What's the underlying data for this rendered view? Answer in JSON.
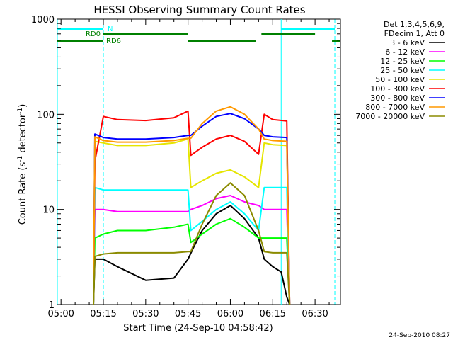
{
  "chart_data": {
    "type": "line",
    "title": "HESSI Observing Summary Count Rates",
    "xlabel": "Start Time (24-Sep-10 04:58:42)",
    "ylabel_main": "Count Rate (s",
    "ylabel_sup1": "-1",
    "ylabel_mid": " detector",
    "ylabel_sup2": "-1",
    "ylabel_end": ")",
    "xlim": [
      "04:58:42",
      "06:39:00"
    ],
    "ylim": [
      1,
      1000
    ],
    "yscale": "log",
    "x_ticks": [
      "05:00",
      "05:15",
      "05:30",
      "05:45",
      "06:00",
      "06:15",
      "06:30"
    ],
    "y_ticks": [
      "1",
      "10",
      "100",
      "1000"
    ],
    "legend_header": [
      "Det 1,3,4,5,6,9,",
      "FDecim 1, Att 0"
    ],
    "legend_placement": "right",
    "timestamp": "24-Sep-2010 08:27",
    "series": [
      {
        "name": "3 - 6 keV",
        "color": "#000000",
        "x": [
          "05:11:30",
          "05:12",
          "05:15",
          "05:20",
          "05:30",
          "05:40",
          "05:45",
          "05:47",
          "05:50",
          "05:55",
          "06:00",
          "06:05",
          "06:10",
          "06:12",
          "06:15",
          "06:18",
          "06:20",
          "06:21"
        ],
        "y": [
          1,
          3,
          3,
          2.5,
          1.8,
          1.9,
          3,
          4,
          6,
          9,
          11,
          8,
          5,
          3,
          2.5,
          2.2,
          1.2,
          1
        ]
      },
      {
        "name": "6 - 12 keV",
        "color": "#ff00ff",
        "x": [
          "05:11:30",
          "05:12",
          "05:15",
          "05:20",
          "05:30",
          "05:40",
          "05:45",
          "05:46",
          "05:50",
          "05:55",
          "06:00",
          "06:05",
          "06:10",
          "06:12",
          "06:15",
          "06:20",
          "06:21"
        ],
        "y": [
          1,
          10,
          10,
          9.5,
          9.5,
          9.5,
          9.5,
          10,
          11,
          13,
          14,
          12,
          11,
          10,
          10,
          10,
          1
        ]
      },
      {
        "name": "12 - 25 keV",
        "color": "#00ff00",
        "x": [
          "05:11:30",
          "05:12",
          "05:15",
          "05:20",
          "05:30",
          "05:40",
          "05:45",
          "05:46",
          "05:50",
          "05:55",
          "06:00",
          "06:05",
          "06:10",
          "06:12",
          "06:15",
          "06:20",
          "06:21"
        ],
        "y": [
          1,
          5,
          5.5,
          6,
          6,
          6.5,
          7,
          4.5,
          5.5,
          7,
          8,
          6.5,
          5,
          5,
          5,
          5,
          1
        ]
      },
      {
        "name": "25 - 50 keV",
        "color": "#00ffff",
        "x": [
          "05:11:30",
          "05:12",
          "05:15",
          "05:20",
          "05:30",
          "05:40",
          "05:45",
          "05:46",
          "05:50",
          "05:55",
          "06:00",
          "06:05",
          "06:10",
          "06:12",
          "06:15",
          "06:20",
          "06:21"
        ],
        "y": [
          1,
          17,
          16,
          16,
          16,
          16,
          16,
          6,
          7.5,
          10,
          12,
          9,
          6,
          17,
          17,
          17,
          1
        ]
      },
      {
        "name": "50 - 100 keV",
        "color": "#e5e500",
        "x": [
          "05:11:30",
          "05:12",
          "05:15",
          "05:20",
          "05:30",
          "05:40",
          "05:45",
          "05:46",
          "05:50",
          "05:55",
          "06:00",
          "06:05",
          "06:10",
          "06:12",
          "06:15",
          "06:20",
          "06:21"
        ],
        "y": [
          1,
          52,
          50,
          47,
          47,
          50,
          55,
          17,
          20,
          24,
          26,
          22,
          17,
          50,
          48,
          47,
          1
        ]
      },
      {
        "name": "100 - 300 keV",
        "color": "#ff0000",
        "x": [
          "05:11:30",
          "05:12",
          "05:15",
          "05:20",
          "05:30",
          "05:40",
          "05:45",
          "05:46",
          "05:50",
          "05:55",
          "06:00",
          "06:05",
          "06:10",
          "06:12",
          "06:15",
          "06:20",
          "06:21"
        ],
        "y": [
          1,
          32,
          95,
          88,
          86,
          92,
          108,
          37,
          45,
          55,
          60,
          52,
          38,
          100,
          88,
          85,
          1
        ]
      },
      {
        "name": "300 - 800 keV",
        "color": "#0000ff",
        "x": [
          "05:11:30",
          "05:12",
          "05:15",
          "05:20",
          "05:30",
          "05:40",
          "05:45",
          "05:46",
          "05:50",
          "05:55",
          "06:00",
          "06:05",
          "06:10",
          "06:12",
          "06:15",
          "06:20",
          "06:21"
        ],
        "y": [
          1,
          62,
          57,
          55,
          55,
          57,
          60,
          60,
          75,
          95,
          102,
          90,
          70,
          60,
          58,
          57,
          1
        ]
      },
      {
        "name": "800 - 7000 keV",
        "color": "#ff9900",
        "x": [
          "05:11:30",
          "05:12",
          "05:15",
          "05:20",
          "05:30",
          "05:40",
          "05:45",
          "05:46",
          "05:50",
          "05:55",
          "06:00",
          "06:05",
          "06:10",
          "06:12",
          "06:15",
          "06:20",
          "06:21"
        ],
        "y": [
          1,
          58,
          53,
          51,
          51,
          53,
          56,
          56,
          80,
          108,
          120,
          100,
          70,
          55,
          53,
          52,
          1
        ]
      },
      {
        "name": "7000 - 20000 keV",
        "color": "#8b8b00",
        "x": [
          "05:11:30",
          "05:12",
          "05:15",
          "05:20",
          "05:30",
          "05:40",
          "05:45",
          "05:46",
          "05:50",
          "05:55",
          "06:00",
          "06:05",
          "06:10",
          "06:12",
          "06:15",
          "06:20",
          "06:21"
        ],
        "y": [
          1,
          3.2,
          3.4,
          3.5,
          3.5,
          3.5,
          3.6,
          3.6,
          7,
          14,
          19,
          14,
          6,
          3.6,
          3.5,
          3.5,
          1
        ]
      }
    ],
    "annotations": {
      "night": {
        "label": "N",
        "color": "#00ffff",
        "segments": [
          [
            "04:58:42",
            "05:15:00"
          ],
          [
            "06:18:00",
            "06:37:00"
          ]
        ]
      },
      "rd0": {
        "label": "RD0",
        "color": "#008000",
        "segments": [
          [
            "04:58:42",
            "05:15:00"
          ],
          [
            "05:15:00",
            "05:45:00"
          ],
          [
            "05:45:00",
            "06:09:00"
          ],
          [
            "06:11:00",
            "06:30:00"
          ],
          [
            "06:36:00",
            "06:39:00"
          ]
        ]
      },
      "rd6": {
        "label": "RD6",
        "color": "#008000"
      },
      "vlines_solid": [
        "04:58:42",
        "06:18:00"
      ],
      "vlines_dashed": [
        "05:15:00",
        "06:37:00"
      ]
    }
  }
}
